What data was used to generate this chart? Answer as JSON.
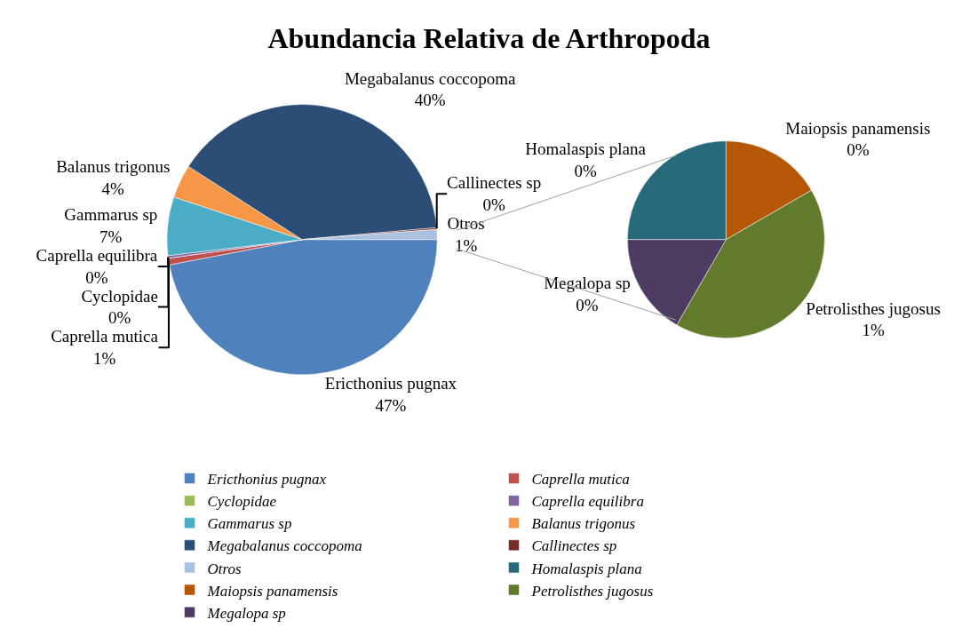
{
  "chart_data": [
    {
      "type": "pie",
      "title": "Abundancia Relativa de Arthropoda",
      "legend": "bottom",
      "categories": [
        "Ericthonius pugnax",
        "Caprella mutica",
        "Cyclopidae",
        "Caprella equilibra",
        "Gammarus sp",
        "Balanus trigonus",
        "Megabalanus coccopoma",
        "Callinectes sp",
        "Otros"
      ],
      "values": [
        47,
        0.8,
        0,
        0.3,
        7,
        4,
        39.5,
        0.2,
        1.2
      ],
      "value_labels": [
        "47%",
        "1%",
        "0%",
        "0%",
        "7%",
        "4%",
        "40%",
        "0%",
        "1%"
      ],
      "colors": [
        "#4f81bd",
        "#c0504d",
        "#9bbb59",
        "#8064a2",
        "#4bacc6",
        "#f79646",
        "#2c4d75",
        "#772c2a",
        "#a9c1df"
      ]
    },
    {
      "type": "pie",
      "legend": "bottom",
      "categories": [
        "Homalaspis plana",
        "Maiopsis panamensis",
        "Petrolisthes jugosus",
        "Megalopa sp"
      ],
      "values": [
        0.3,
        0.2,
        0.5,
        0.2
      ],
      "value_labels": [
        "0%",
        "0%",
        "1%",
        "0%"
      ],
      "colors": [
        "#276a7c",
        "#b65708",
        "#627a2c",
        "#4d3b62"
      ]
    }
  ]
}
